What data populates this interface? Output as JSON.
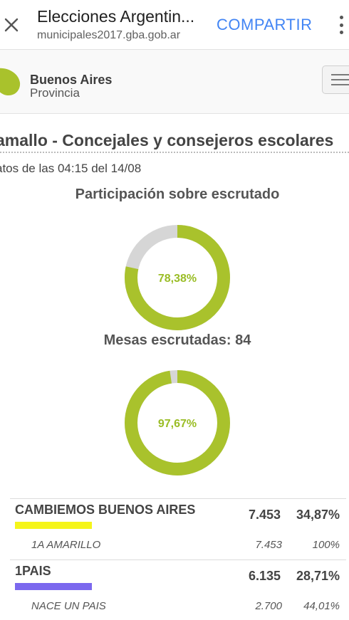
{
  "browser": {
    "title": "Elecciones Argentin...",
    "url": "municipales2017.gba.gob.ar",
    "share_label": "COMPARTIR",
    "close_icon": "close-icon",
    "menu_icon": "more-vert-icon"
  },
  "header": {
    "logo_line1": "Buenos Aires",
    "logo_line2": "Provincia",
    "logo_color": "#a9c22c",
    "menu_icon": "hamburger-icon"
  },
  "main": {
    "title": "amallo - Concejales y consejeros escolares",
    "update_text": "atos de las 04:15 del 14/08",
    "participation_label": "Participación sobre escrutado",
    "participation_value": "78,38%",
    "participation_fraction": 0.7838,
    "tables_label": "Mesas escrutadas: 84",
    "tables_value": "97,67%",
    "tables_fraction": 0.9767,
    "fill_color": "#a9c22c",
    "rest_color": "#d6d6d6"
  },
  "results": [
    {
      "party": "CAMBIEMOS BUENOS AIRES",
      "votes": "7.453",
      "pct": "34,87%",
      "color": "#f5f51a",
      "list": {
        "name": "1A AMARILLO",
        "votes": "7.453",
        "pct": "100%"
      }
    },
    {
      "party": "1PAIS",
      "votes": "6.135",
      "pct": "28,71%",
      "color": "#7b68ee",
      "list": {
        "name": "NACE UN PAIS",
        "votes": "2.700",
        "pct": "44,01%"
      }
    }
  ]
}
